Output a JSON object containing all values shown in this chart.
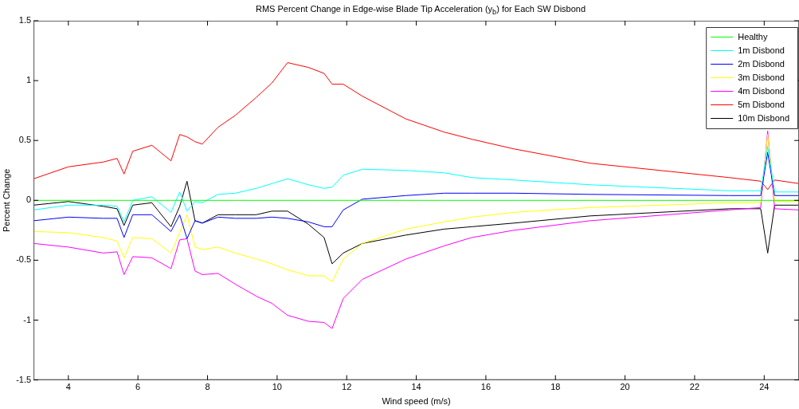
{
  "chart_data": {
    "type": "line",
    "title": "RMS Percent Change in Edge-wise Blade Tip Acceleration (y$_{b}$) for Each SW Disbond",
    "xlabel": "Wind speed (m/s)",
    "ylabel": "Percent Change",
    "x": [
      3,
      4,
      5,
      5.4,
      5.6,
      5.85,
      6.4,
      6.95,
      7.2,
      7.41,
      7.64,
      7.85,
      8.3,
      8.8,
      9.4,
      9.85,
      10.3,
      10.9,
      11.35,
      11.58,
      11.9,
      12.45,
      13.7,
      14.8,
      15.6,
      16.8,
      19,
      23,
      23.9,
      24.1,
      24.3,
      25
    ],
    "series": [
      {
        "name": "Healthy",
        "color": "#00ff00",
        "values": [
          0,
          0,
          0,
          0,
          0,
          0,
          0,
          0,
          0,
          0,
          0,
          0,
          0,
          0,
          0,
          0,
          0,
          0,
          0,
          0,
          0,
          0,
          0,
          0,
          0,
          0,
          0,
          0,
          0,
          0,
          0,
          0
        ]
      },
      {
        "name": "1m Disbond",
        "color": "#00ffff",
        "values": [
          -0.08,
          -0.04,
          -0.04,
          -0.05,
          -0.18,
          0.0,
          0.03,
          -0.1,
          0.07,
          -0.09,
          -0.01,
          -0.02,
          0.05,
          0.06,
          0.1,
          0.14,
          0.18,
          0.13,
          0.1,
          0.11,
          0.21,
          0.26,
          0.25,
          0.23,
          0.19,
          0.17,
          0.13,
          0.08,
          0.08,
          0.45,
          0.07,
          0.07
        ]
      },
      {
        "name": "2m Disbond",
        "color": "#0000ff",
        "values": [
          -0.17,
          -0.14,
          -0.15,
          -0.15,
          -0.31,
          -0.12,
          -0.12,
          -0.26,
          -0.12,
          -0.32,
          -0.17,
          -0.19,
          -0.14,
          -0.15,
          -0.15,
          -0.14,
          -0.15,
          -0.18,
          -0.22,
          -0.22,
          -0.08,
          0.01,
          0.04,
          0.06,
          0.06,
          0.06,
          0.05,
          0.04,
          0.04,
          0.4,
          0.04,
          0.04
        ]
      },
      {
        "name": "3m Disbond",
        "color": "#ffff00",
        "values": [
          -0.26,
          -0.27,
          -0.31,
          -0.34,
          -0.48,
          -0.31,
          -0.32,
          -0.44,
          -0.27,
          -0.12,
          -0.39,
          -0.41,
          -0.39,
          -0.44,
          -0.49,
          -0.53,
          -0.58,
          -0.63,
          -0.63,
          -0.68,
          -0.49,
          -0.36,
          -0.24,
          -0.18,
          -0.14,
          -0.1,
          -0.06,
          -0.02,
          -0.02,
          0.55,
          -0.01,
          -0.01
        ]
      },
      {
        "name": "4m Disbond",
        "color": "#ff00ff",
        "values": [
          -0.36,
          -0.39,
          -0.44,
          -0.43,
          -0.62,
          -0.47,
          -0.48,
          -0.57,
          -0.33,
          -0.32,
          -0.59,
          -0.62,
          -0.61,
          -0.7,
          -0.8,
          -0.86,
          -0.96,
          -1.01,
          -1.02,
          -1.07,
          -0.82,
          -0.66,
          -0.49,
          -0.38,
          -0.31,
          -0.25,
          -0.17,
          -0.08,
          -0.06,
          0.58,
          -0.07,
          -0.08
        ]
      },
      {
        "name": "5m Disbond",
        "color": "#ff0000",
        "values": [
          0.18,
          0.28,
          0.32,
          0.35,
          0.22,
          0.41,
          0.46,
          0.33,
          0.55,
          0.53,
          0.49,
          0.47,
          0.61,
          0.71,
          0.86,
          0.98,
          1.15,
          1.11,
          1.06,
          0.97,
          0.97,
          0.87,
          0.68,
          0.57,
          0.51,
          0.43,
          0.31,
          0.19,
          0.16,
          0.09,
          0.17,
          0.14
        ]
      },
      {
        "name": "10m Disbond",
        "color": "#000000",
        "values": [
          -0.04,
          -0.01,
          -0.05,
          -0.07,
          -0.21,
          -0.04,
          -0.02,
          -0.22,
          -0.05,
          0.16,
          -0.17,
          -0.19,
          -0.12,
          -0.12,
          -0.12,
          -0.09,
          -0.09,
          -0.2,
          -0.31,
          -0.53,
          -0.44,
          -0.36,
          -0.29,
          -0.24,
          -0.22,
          -0.19,
          -0.13,
          -0.07,
          -0.07,
          -0.44,
          -0.04,
          -0.04
        ]
      }
    ],
    "xlim": [
      3,
      25
    ],
    "xticks": [
      4,
      6,
      8,
      10,
      12,
      14,
      16,
      18,
      20,
      22,
      24
    ],
    "ylim": [
      -1.5,
      1.5
    ],
    "yticks": [
      -1.5,
      -1,
      -0.5,
      0,
      0.5,
      1,
      1.5
    ],
    "grid": false,
    "legend": "top right",
    "marker": "none",
    "line_style": "solid"
  }
}
